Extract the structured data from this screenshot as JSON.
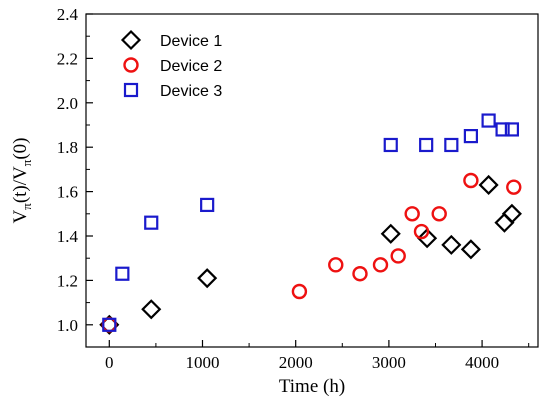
{
  "chart_data": {
    "type": "scatter",
    "xlabel": "Time (h)",
    "ylabel_main": "V",
    "ylabel_sub": "π",
    "ylabel_mid": "(t)/V",
    "ylabel_end": "(0)",
    "xlim": [
      -250,
      4600
    ],
    "ylim": [
      0.9,
      2.4
    ],
    "xticks": [
      0,
      1000,
      2000,
      3000,
      4000
    ],
    "xtick_labels": [
      "0",
      "1000",
      "2000",
      "3000",
      "4000"
    ],
    "yticks": [
      1.0,
      1.2,
      1.4,
      1.6,
      1.8,
      2.0,
      2.2,
      2.4
    ],
    "ytick_labels": [
      "1.0",
      "1.2",
      "1.4",
      "1.6",
      "1.8",
      "2.0",
      "2.2",
      "2.4"
    ],
    "legend_position": "top-left",
    "series": [
      {
        "name": "Device 1",
        "marker": "diamond",
        "color": "#000000",
        "x": [
          0,
          450,
          1050,
          3020,
          3410,
          3670,
          3880,
          4070,
          4240,
          4320
        ],
        "y": [
          1.0,
          1.07,
          1.21,
          1.41,
          1.39,
          1.36,
          1.34,
          1.63,
          1.46,
          1.5
        ]
      },
      {
        "name": "Device 2",
        "marker": "circle",
        "color": "#ee1111",
        "x": [
          0,
          2040,
          2430,
          2690,
          2910,
          3100,
          3250,
          3350,
          3540,
          3880,
          4340
        ],
        "y": [
          1.0,
          1.15,
          1.27,
          1.23,
          1.27,
          1.31,
          1.5,
          1.42,
          1.5,
          1.65,
          1.62
        ]
      },
      {
        "name": "Device 3",
        "marker": "square",
        "color": "#1a1acc",
        "x": [
          0,
          140,
          450,
          1050,
          3020,
          3400,
          3670,
          3880,
          4070,
          4220,
          4320
        ],
        "y": [
          1.0,
          1.23,
          1.46,
          1.54,
          1.81,
          1.81,
          1.81,
          1.85,
          1.92,
          1.88,
          1.88
        ]
      }
    ]
  }
}
